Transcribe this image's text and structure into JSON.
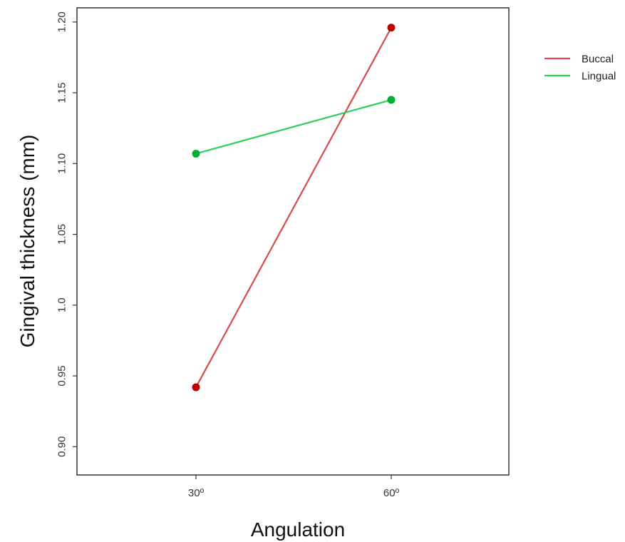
{
  "chart_data": {
    "type": "line",
    "title": "",
    "xlabel": "Angulation",
    "ylabel": "Gingival thickness (mm)",
    "categories": [
      "30º",
      "60º"
    ],
    "ylim": [
      0.88,
      1.21
    ],
    "yticks": [
      {
        "value": 0.9,
        "label": "0.90"
      },
      {
        "value": 0.95,
        "label": "0.95"
      },
      {
        "value": 1.0,
        "label": "1.0"
      },
      {
        "value": 1.05,
        "label": "1.05"
      },
      {
        "value": 1.1,
        "label": "1.10"
      },
      {
        "value": 1.15,
        "label": "1.15"
      },
      {
        "value": 1.2,
        "label": "1.20"
      }
    ],
    "grid": false,
    "legend_position": "right",
    "series": [
      {
        "name": "Buccal",
        "color": "#d94a4a",
        "marker_color": "#c00000",
        "values": [
          0.942,
          1.196
        ]
      },
      {
        "name": "Lingual",
        "color": "#2ecc5a",
        "marker_color": "#00b030",
        "values": [
          1.107,
          1.145
        ]
      }
    ]
  }
}
